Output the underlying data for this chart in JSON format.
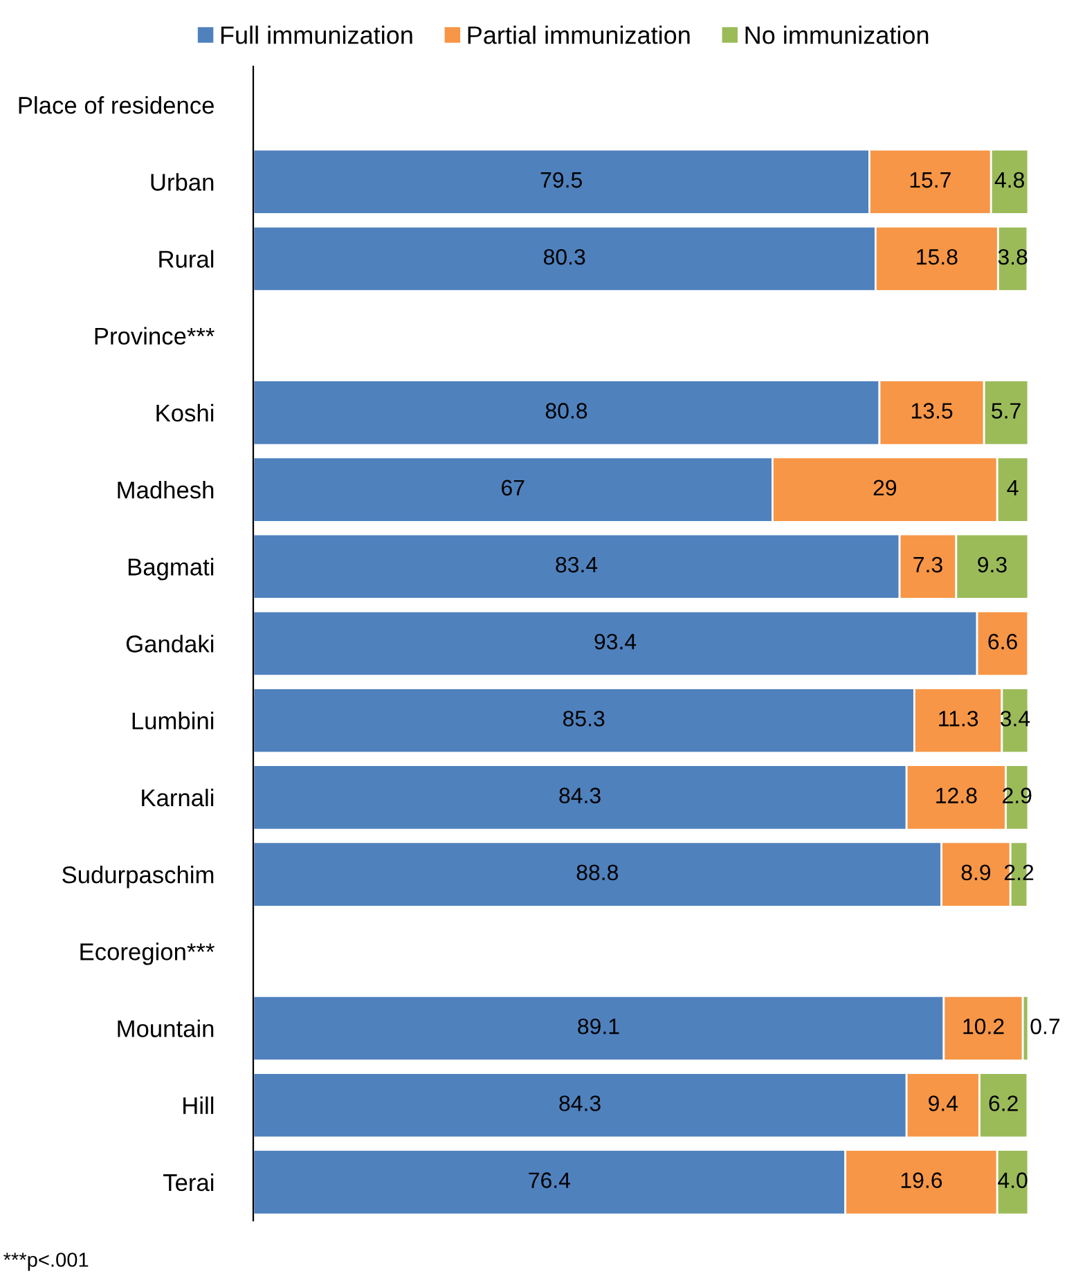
{
  "chart_data": {
    "type": "bar",
    "orientation": "horizontal",
    "stacked": true,
    "legend": "top",
    "categories": [
      "Place of residence",
      "Urban",
      "Rural",
      "Province***",
      "Koshi",
      "Madhesh",
      "Bagmati",
      "Gandaki",
      "Lumbini",
      "Karnali",
      "Sudurpaschim",
      "Ecoregion***",
      "Mountain",
      "Hill",
      "Terai"
    ],
    "series": [
      {
        "name": "Full immunization",
        "color": "#4f81bd",
        "values": [
          null,
          79.5,
          80.3,
          null,
          80.8,
          67,
          83.4,
          93.4,
          85.3,
          84.3,
          88.8,
          null,
          89.1,
          84.3,
          76.4
        ],
        "value_labels": [
          null,
          "79.5",
          "80.3",
          null,
          "80.8",
          "67",
          "83.4",
          "93.4",
          "85.3",
          "84.3",
          "88.8",
          null,
          "89.1",
          "84.3",
          "76.4"
        ]
      },
      {
        "name": "Partial immunization",
        "color": "#f79646",
        "values": [
          null,
          15.7,
          15.8,
          null,
          13.5,
          29,
          7.3,
          6.6,
          11.3,
          12.8,
          8.9,
          null,
          10.2,
          9.4,
          19.6
        ],
        "value_labels": [
          null,
          "15.7",
          "15.8",
          null,
          "13.5",
          "29",
          "7.3",
          "6.6",
          "11.3",
          "12.8",
          "8.9",
          null,
          "10.2",
          "9.4",
          "19.6"
        ]
      },
      {
        "name": "No immunization",
        "color": "#9bbb59",
        "values": [
          null,
          4.8,
          3.8,
          null,
          5.7,
          4,
          9.3,
          null,
          3.4,
          2.9,
          2.2,
          null,
          0.7,
          6.2,
          4.0
        ],
        "value_labels": [
          null,
          "4.8",
          "3.8",
          null,
          "5.7",
          "4",
          "9.3",
          null,
          "3.4",
          "2.9",
          "2.2",
          null,
          "0.7",
          "6.2",
          "4.0"
        ]
      }
    ],
    "annotations": [
      "***p<.001"
    ]
  }
}
